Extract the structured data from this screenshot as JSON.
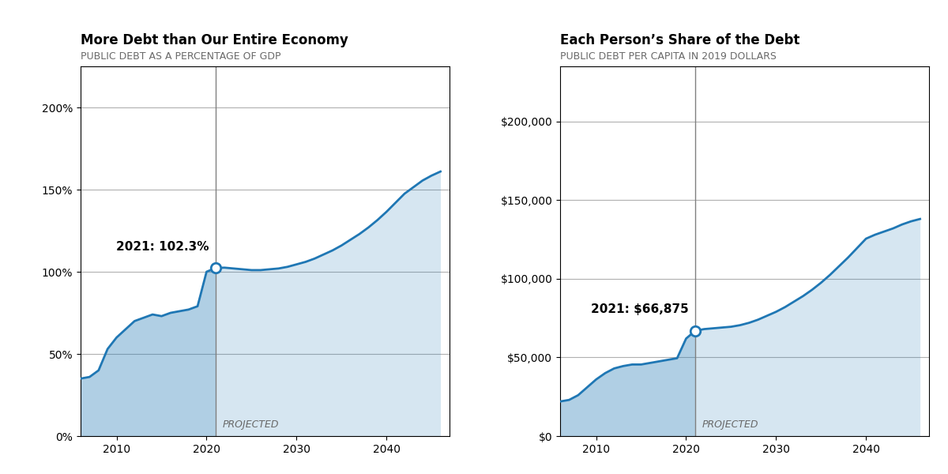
{
  "chart_data": [
    {
      "type": "area",
      "title": "More Debt than Our Entire Economy",
      "subtitle": "PUBLIC DEBT AS A PERCENTAGE OF GDP",
      "x": [
        2006,
        2007,
        2008,
        2009,
        2010,
        2011,
        2012,
        2013,
        2014,
        2015,
        2016,
        2017,
        2018,
        2019,
        2020,
        2021,
        2022,
        2023,
        2024,
        2025,
        2026,
        2027,
        2028,
        2029,
        2030,
        2031,
        2032,
        2033,
        2034,
        2035,
        2036,
        2037,
        2038,
        2039,
        2040,
        2041,
        2042,
        2043,
        2044,
        2045,
        2046
      ],
      "series": [
        {
          "values": [
            35,
            36,
            40,
            53,
            60,
            65,
            70,
            72,
            74,
            73,
            75,
            76,
            77,
            79,
            100,
            102.3,
            null,
            null,
            null,
            null,
            null,
            null,
            null,
            null,
            null,
            null,
            null,
            null,
            null,
            null,
            null,
            null,
            null,
            null,
            null,
            null,
            null,
            null,
            null,
            null,
            null
          ]
        },
        {
          "values": [
            null,
            null,
            null,
            null,
            null,
            null,
            null,
            null,
            null,
            null,
            null,
            null,
            null,
            null,
            null,
            102.3,
            102.5,
            102.0,
            101.5,
            101.0,
            101.0,
            101.5,
            102.0,
            103.0,
            104.5,
            106.0,
            108.0,
            110.5,
            113.0,
            116.0,
            119.5,
            123.0,
            127.0,
            131.5,
            136.5,
            142.0,
            147.5,
            151.5,
            155.5,
            158.5,
            161.0
          ]
        }
      ],
      "annotations": [
        {
          "x": 2021,
          "y": 102.3,
          "text": "2021: 102.3%"
        }
      ],
      "vline": 2021,
      "projected_label": "PROJECTED",
      "xlim": [
        2006,
        2047
      ],
      "xticks": [
        2010,
        2020,
        2030,
        2040
      ],
      "ylim": [
        0,
        225
      ],
      "yticks": [
        {
          "value": 0,
          "label": "0%"
        },
        {
          "value": 50,
          "label": "50%"
        },
        {
          "value": 100,
          "label": "100%"
        },
        {
          "value": 150,
          "label": "150%"
        },
        {
          "value": 200,
          "label": "200%"
        }
      ],
      "grid": "y"
    },
    {
      "type": "area",
      "title": "Each Person’s Share of the Debt",
      "subtitle": "PUBLIC DEBT PER CAPITA IN 2019 DOLLARS",
      "x": [
        2006,
        2007,
        2008,
        2009,
        2010,
        2011,
        2012,
        2013,
        2014,
        2015,
        2016,
        2017,
        2018,
        2019,
        2020,
        2021,
        2022,
        2023,
        2024,
        2025,
        2026,
        2027,
        2028,
        2029,
        2030,
        2031,
        2032,
        2033,
        2034,
        2035,
        2036,
        2037,
        2038,
        2039,
        2040,
        2041,
        2042,
        2043,
        2044,
        2045,
        2046
      ],
      "series": [
        {
          "values": [
            22000,
            23000,
            26000,
            31000,
            36000,
            40000,
            43000,
            44500,
            45500,
            45500,
            46500,
            47500,
            48500,
            49500,
            62000,
            66875,
            null,
            null,
            null,
            null,
            null,
            null,
            null,
            null,
            null,
            null,
            null,
            null,
            null,
            null,
            null,
            null,
            null,
            null,
            null,
            null,
            null,
            null,
            null,
            null,
            null
          ]
        },
        {
          "values": [
            null,
            null,
            null,
            null,
            null,
            null,
            null,
            null,
            null,
            null,
            null,
            null,
            null,
            null,
            null,
            66875,
            68000,
            68500,
            69000,
            69500,
            70500,
            72000,
            74000,
            76500,
            79000,
            82000,
            85500,
            89000,
            93000,
            97500,
            102500,
            108000,
            113500,
            119500,
            125500,
            128000,
            130000,
            132000,
            134500,
            136500,
            138000
          ]
        }
      ],
      "annotations": [
        {
          "x": 2021,
          "y": 66875,
          "text": "2021: $66,875"
        }
      ],
      "vline": 2021,
      "projected_label": "PROJECTED",
      "xlim": [
        2006,
        2047
      ],
      "xticks": [
        2010,
        2020,
        2030,
        2040
      ],
      "ylim": [
        0,
        235000
      ],
      "yticks": [
        {
          "value": 0,
          "label": "$0"
        },
        {
          "value": 50000,
          "label": "$50,000"
        },
        {
          "value": 100000,
          "label": "$100,000"
        },
        {
          "value": 150000,
          "label": "$150,000"
        },
        {
          "value": 200000,
          "label": "$200,000"
        }
      ],
      "grid": "y"
    }
  ]
}
